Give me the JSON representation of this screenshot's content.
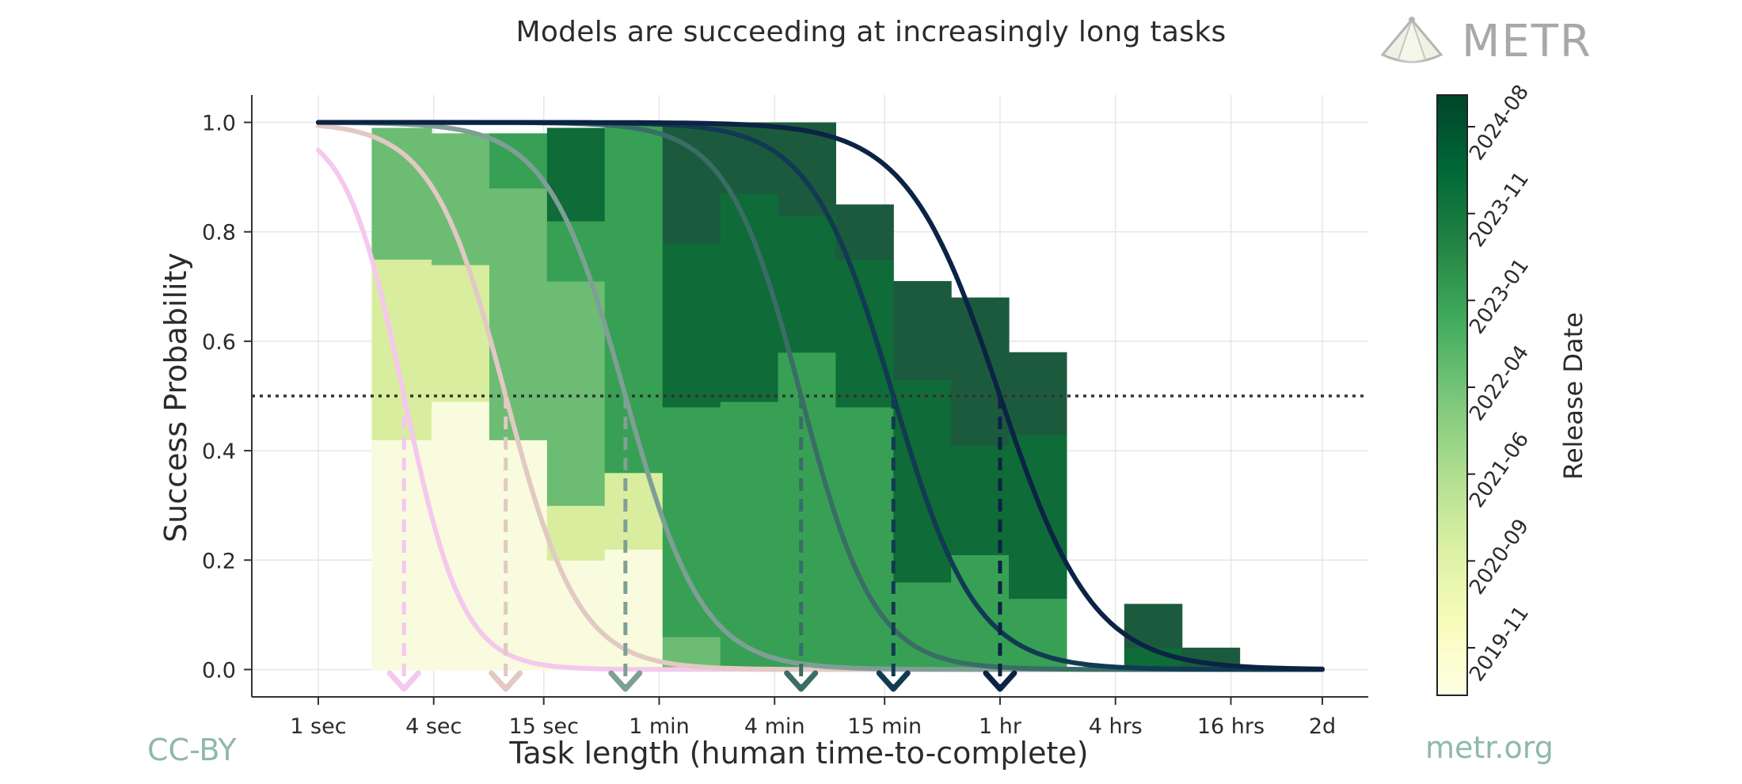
{
  "header": {
    "title": "Models are succeeding at increasingly long tasks",
    "brand": "METR"
  },
  "footer": {
    "license": "CC-BY",
    "site": "metr.org"
  },
  "colors": {
    "grid": "#e6e6e6",
    "axis": "#333333",
    "threshold": "#333333"
  },
  "chart_data": {
    "type": "line",
    "title": "Models are succeeding at increasingly long tasks",
    "xlabel": "Task length (human time-to-complete)",
    "ylabel": "Success Probability",
    "x_scale": "log",
    "x_unit": "seconds",
    "xlim_seconds": [
      0.45,
      300000
    ],
    "ylim": [
      -0.05,
      1.05
    ],
    "grid": true,
    "x_ticks": [
      {
        "label": "1 sec",
        "seconds": 1
      },
      {
        "label": "4 sec",
        "seconds": 4
      },
      {
        "label": "15 sec",
        "seconds": 15
      },
      {
        "label": "1 min",
        "seconds": 60
      },
      {
        "label": "4 min",
        "seconds": 240
      },
      {
        "label": "15 min",
        "seconds": 900
      },
      {
        "label": "1 hr",
        "seconds": 3600
      },
      {
        "label": "4 hrs",
        "seconds": 14400
      },
      {
        "label": "16 hrs",
        "seconds": 57600
      },
      {
        "label": "2d",
        "seconds": 172800
      }
    ],
    "y_ticks": [
      {
        "label": "0.0",
        "value": 0.0
      },
      {
        "label": "0.2",
        "value": 0.2
      },
      {
        "label": "0.4",
        "value": 0.4
      },
      {
        "label": "0.6",
        "value": 0.6
      },
      {
        "label": "0.8",
        "value": 0.8
      },
      {
        "label": "1.0",
        "value": 1.0
      }
    ],
    "threshold": 0.5,
    "series": [
      {
        "color": "#f5c8ee",
        "horizon_seconds": 2.8,
        "slope": 0.44,
        "x_start": 1,
        "x_end": 172800
      },
      {
        "color": "#e2c9c4",
        "horizon_seconds": 9.5,
        "slope": 0.55,
        "x_start": 1,
        "x_end": 172800
      },
      {
        "color": "#7f9f96",
        "horizon_seconds": 40,
        "slope": 0.58,
        "x_start": 1,
        "x_end": 172800
      },
      {
        "color": "#3a6d66",
        "horizon_seconds": 330,
        "slope": 0.55,
        "x_start": 1,
        "x_end": 172800
      },
      {
        "color": "#123a52",
        "horizon_seconds": 1000,
        "slope": 0.62,
        "x_start": 1,
        "x_end": 172800
      },
      {
        "color": "#0b2344",
        "horizon_seconds": 3600,
        "slope": 0.7,
        "x_start": 1,
        "x_end": 172800
      }
    ],
    "histogram": {
      "bins_seconds": [
        1.9,
        3.9,
        7.8,
        15.6,
        31.2,
        62.5,
        125,
        250,
        500,
        1000,
        2000,
        4000,
        8000,
        16000,
        32000,
        64000
      ],
      "bars": [
        {
          "bin": 0,
          "low": 0.0,
          "high": 0.42,
          "color": "#f8fbdd"
        },
        {
          "bin": 0,
          "low": 0.42,
          "high": 0.75,
          "color": "#d8ee9e"
        },
        {
          "bin": 0,
          "low": 0.75,
          "high": 0.99,
          "color": "#6dbc73"
        },
        {
          "bin": 1,
          "low": 0.0,
          "high": 0.49,
          "color": "#f8fbdd"
        },
        {
          "bin": 1,
          "low": 0.49,
          "high": 0.74,
          "color": "#d8ee9e"
        },
        {
          "bin": 1,
          "low": 0.74,
          "high": 0.98,
          "color": "#6dbc73"
        },
        {
          "bin": 2,
          "low": 0.0,
          "high": 0.42,
          "color": "#f8fbdd"
        },
        {
          "bin": 2,
          "low": 0.42,
          "high": 0.88,
          "color": "#6dbc73"
        },
        {
          "bin": 2,
          "low": 0.88,
          "high": 0.98,
          "color": "#37a055"
        },
        {
          "bin": 3,
          "low": 0.0,
          "high": 0.2,
          "color": "#f8fbdd"
        },
        {
          "bin": 3,
          "low": 0.2,
          "high": 0.3,
          "color": "#d8ee9e"
        },
        {
          "bin": 3,
          "low": 0.3,
          "high": 0.71,
          "color": "#6dbc73"
        },
        {
          "bin": 3,
          "low": 0.71,
          "high": 0.82,
          "color": "#37a055"
        },
        {
          "bin": 3,
          "low": 0.82,
          "high": 0.99,
          "color": "#0f6b37"
        },
        {
          "bin": 4,
          "low": 0.0,
          "high": 0.22,
          "color": "#f8fbdd"
        },
        {
          "bin": 4,
          "low": 0.22,
          "high": 0.36,
          "color": "#d8ee9e"
        },
        {
          "bin": 4,
          "low": 0.36,
          "high": 1.0,
          "color": "#37a055"
        },
        {
          "bin": 5,
          "low": 0.0,
          "high": 0.06,
          "color": "#6dbc73"
        },
        {
          "bin": 5,
          "low": 0.06,
          "high": 0.48,
          "color": "#37a055"
        },
        {
          "bin": 5,
          "low": 0.48,
          "high": 0.78,
          "color": "#0f6b37"
        },
        {
          "bin": 5,
          "low": 0.78,
          "high": 1.0,
          "color": "#1c5a3e"
        },
        {
          "bin": 6,
          "low": 0.0,
          "high": 0.02,
          "color": "#37a055"
        },
        {
          "bin": 6,
          "low": 0.02,
          "high": 0.49,
          "color": "#37a055"
        },
        {
          "bin": 6,
          "low": 0.49,
          "high": 0.87,
          "color": "#0f6b37"
        },
        {
          "bin": 6,
          "low": 0.87,
          "high": 1.0,
          "color": "#1c5a3e"
        },
        {
          "bin": 7,
          "low": 0.0,
          "high": 0.58,
          "color": "#37a055"
        },
        {
          "bin": 7,
          "low": 0.58,
          "high": 0.83,
          "color": "#0f6b37"
        },
        {
          "bin": 7,
          "low": 0.83,
          "high": 1.0,
          "color": "#1c5a3e"
        },
        {
          "bin": 8,
          "low": 0.0,
          "high": 0.48,
          "color": "#37a055"
        },
        {
          "bin": 8,
          "low": 0.48,
          "high": 0.75,
          "color": "#0f6b37"
        },
        {
          "bin": 8,
          "low": 0.75,
          "high": 0.85,
          "color": "#1c5a3e"
        },
        {
          "bin": 9,
          "low": 0.0,
          "high": 0.16,
          "color": "#37a055"
        },
        {
          "bin": 9,
          "low": 0.16,
          "high": 0.53,
          "color": "#0f6b37"
        },
        {
          "bin": 9,
          "low": 0.53,
          "high": 0.71,
          "color": "#1c5a3e"
        },
        {
          "bin": 10,
          "low": 0.0,
          "high": 0.21,
          "color": "#37a055"
        },
        {
          "bin": 10,
          "low": 0.21,
          "high": 0.41,
          "color": "#0f6b37"
        },
        {
          "bin": 10,
          "low": 0.41,
          "high": 0.68,
          "color": "#1c5a3e"
        },
        {
          "bin": 11,
          "low": 0.0,
          "high": 0.13,
          "color": "#37a055"
        },
        {
          "bin": 11,
          "low": 0.13,
          "high": 0.43,
          "color": "#0f6b37"
        },
        {
          "bin": 11,
          "low": 0.43,
          "high": 0.58,
          "color": "#1c5a3e"
        },
        {
          "bin": 13,
          "low": 0.0,
          "high": 0.04,
          "color": "#0f6b37"
        },
        {
          "bin": 13,
          "low": 0.04,
          "high": 0.12,
          "color": "#1c5a3e"
        },
        {
          "bin": 14,
          "low": 0.0,
          "high": 0.04,
          "color": "#1c5a3e"
        }
      ]
    },
    "colorbar": {
      "label": "Release Date",
      "ticks": [
        "2019-11",
        "2020-09",
        "2021-06",
        "2022-04",
        "2023-01",
        "2023-11",
        "2024-08"
      ],
      "gradient": [
        "#ffffe5",
        "#f7fcb9",
        "#d9f0a3",
        "#addd8e",
        "#78c679",
        "#41ab5d",
        "#238443",
        "#006837",
        "#004529"
      ]
    }
  }
}
